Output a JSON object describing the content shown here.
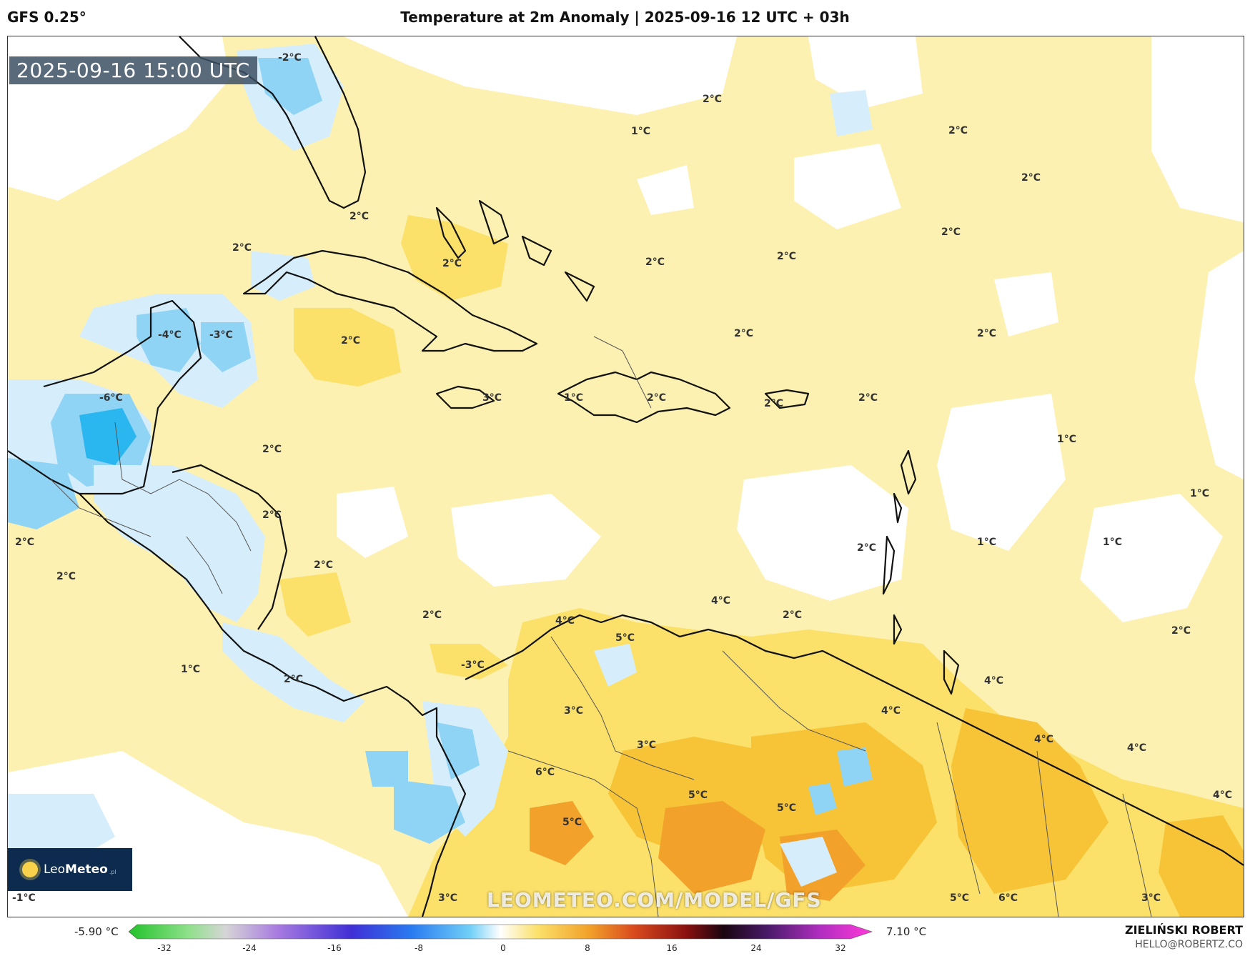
{
  "header": {
    "model": "GFS 0.25°",
    "title": "Temperature at 2m Anomaly | 2025-09-16 12 UTC + 03h"
  },
  "map": {
    "timestamp": "2025-09-16 15:00 UTC",
    "watermark": "LEOMETEO.COM/MODEL/GFS",
    "logo_text_1": "Leo",
    "logo_text_2": "Meteo",
    "logo_sub": ".pl",
    "labels": [
      "-2°C",
      "2°C",
      "1°C",
      "2°C",
      "2°C",
      "2°C",
      "2°C",
      "2°C",
      "2°C",
      "2°C",
      "-4°C",
      "-3°C",
      "2°C",
      "2°C",
      "2°C",
      "2°C",
      "-6°C",
      "3°C",
      "1°C",
      "2°C",
      "2°C",
      "2°C",
      "1°C",
      "2°C",
      "2°C",
      "1°C",
      "1°C",
      "2°C",
      "2°C",
      "2°C",
      "1°C",
      "2°C",
      "2°C",
      "4°C",
      "4°C",
      "5°C",
      "2°C",
      "2°C",
      "1°C",
      "2°C",
      "-3°C",
      "3°C",
      "4°C",
      "4°C",
      "4°C",
      "3°C",
      "4°C",
      "4°C",
      "6°C",
      "5°C",
      "5°C",
      "5°C",
      "5°C",
      "6°C",
      "3°C",
      "3°C",
      "-1°C"
    ],
    "colors": {
      "positive_light": "#fdf1b2",
      "positive_mid": "#fbe06a",
      "positive_high": "#f7c437",
      "positive_max": "#f2a12a",
      "negative_light": "#d6eefb",
      "negative_mid": "#8fd3f5",
      "negative_high": "#2ab6ee",
      "coast": "#111111"
    }
  },
  "colorbar": {
    "min_label": "-5.90 °C",
    "max_label": "7.10 °C",
    "ticks": [
      "-32",
      "-24",
      "-16",
      "-8",
      "0",
      "8",
      "16",
      "24",
      "32"
    ]
  },
  "footer": {
    "author": "ZIELIŃSKI ROBERT",
    "email": "HELLO@ROBERTZ.CO"
  }
}
